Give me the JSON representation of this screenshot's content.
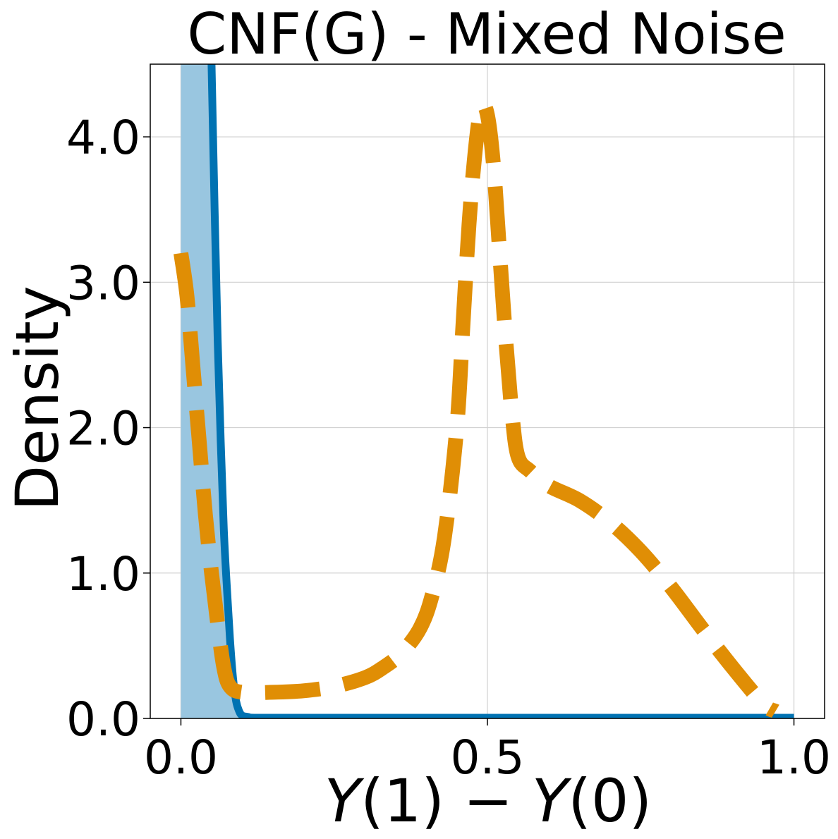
{
  "chart_data": {
    "type": "line",
    "title": "CNF(G) - Mixed Noise",
    "ylabel": "Density",
    "xlabel": {
      "var1": "Y",
      "arg1": "(1)",
      "op": " − ",
      "var2": "Y",
      "arg2": "(0)"
    },
    "xlim": [
      -0.05,
      1.05
    ],
    "ylim": [
      0.0,
      4.5
    ],
    "xticks": [
      0.0,
      0.5,
      1.0
    ],
    "xtick_labels": [
      "0.0",
      "0.5",
      "1.0"
    ],
    "yticks": [
      0.0,
      1.0,
      2.0,
      3.0,
      4.0
    ],
    "ytick_labels": [
      "0.0",
      "1.0",
      "2.0",
      "3.0",
      "4.0"
    ],
    "grid": true,
    "colors": {
      "blue_line": "#0072b2",
      "blue_fill": "#99c6e0",
      "orange_dashed": "#e08e05"
    },
    "shaded_region": {
      "x": [
        0.0,
        0.001,
        0.002,
        0.01,
        0.02,
        0.03,
        0.04,
        0.05,
        0.06,
        0.07,
        0.08,
        0.09,
        0.1,
        0.11,
        0.12
      ],
      "y": [
        4.5,
        4.5,
        4.5,
        4.5,
        4.5,
        4.5,
        4.5,
        4.5,
        2.4,
        1.1,
        0.45,
        0.15,
        0.04,
        0.01,
        0.0
      ]
    },
    "series": [
      {
        "style": "solid",
        "x": [
          0.05,
          0.055,
          0.06,
          0.065,
          0.07,
          0.075,
          0.08,
          0.085,
          0.09,
          0.095,
          0.1,
          0.11,
          0.12,
          0.2,
          0.4,
          0.6,
          0.8,
          1.0
        ],
        "y": [
          4.5,
          3.5,
          2.6,
          1.9,
          1.3,
          0.9,
          0.55,
          0.28,
          0.12,
          0.05,
          0.02,
          0.01,
          0.005,
          0.005,
          0.005,
          0.005,
          0.005,
          0.005
        ]
      },
      {
        "style": "dashed",
        "x": [
          0.0,
          0.01,
          0.02,
          0.03,
          0.04,
          0.05,
          0.06,
          0.07,
          0.08,
          0.1,
          0.15,
          0.2,
          0.25,
          0.3,
          0.33,
          0.36,
          0.39,
          0.41,
          0.43,
          0.45,
          0.46,
          0.47,
          0.48,
          0.49,
          0.5,
          0.51,
          0.52,
          0.53,
          0.54,
          0.55,
          0.57,
          0.6,
          0.65,
          0.7,
          0.75,
          0.8,
          0.85,
          0.9,
          0.95,
          0.97
        ],
        "y": [
          3.2,
          2.9,
          2.4,
          1.9,
          1.4,
          1.0,
          0.65,
          0.35,
          0.22,
          0.18,
          0.18,
          0.19,
          0.22,
          0.28,
          0.35,
          0.45,
          0.62,
          0.85,
          1.25,
          2.0,
          2.7,
          3.4,
          3.9,
          4.2,
          4.15,
          3.8,
          3.2,
          2.6,
          2.1,
          1.8,
          1.7,
          1.6,
          1.5,
          1.35,
          1.15,
          0.9,
          0.62,
          0.35,
          0.1,
          0.05
        ]
      }
    ]
  }
}
